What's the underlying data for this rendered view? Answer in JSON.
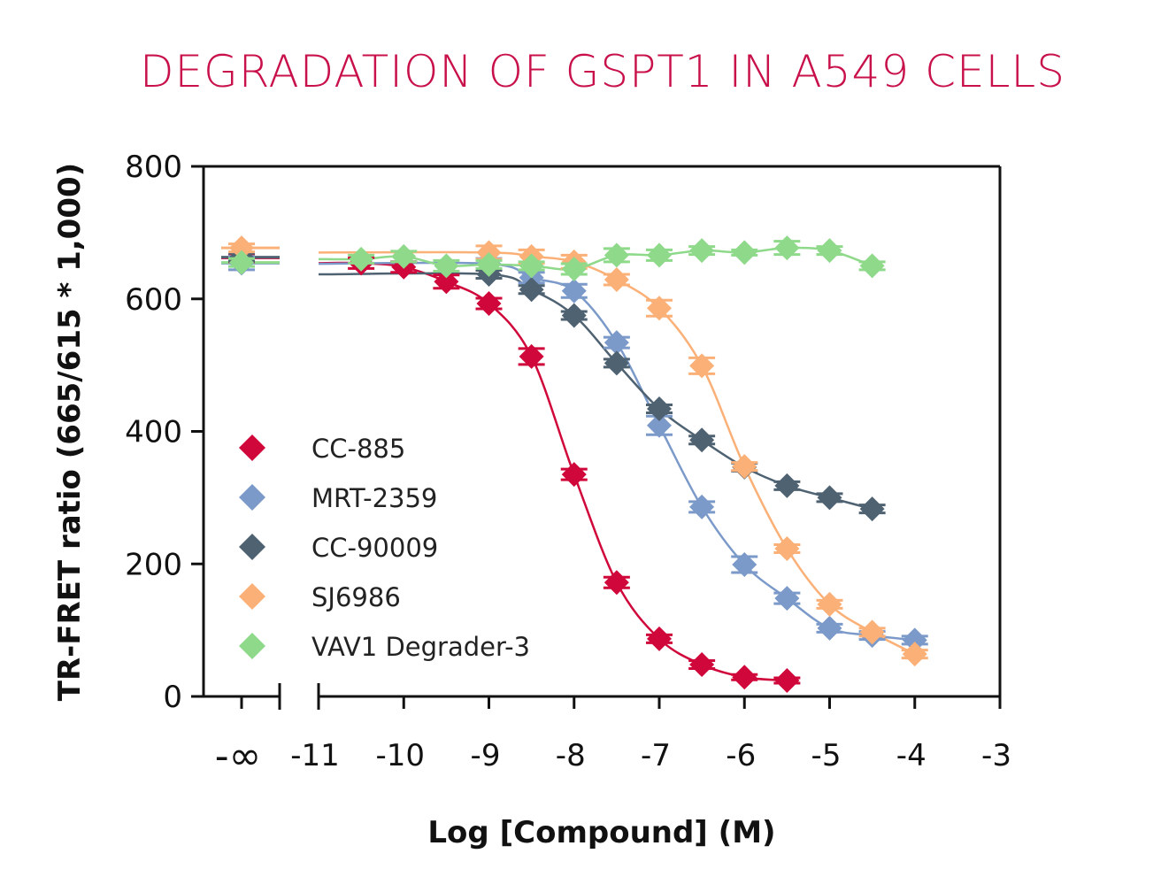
{
  "chart_data": {
    "type": "scatter",
    "title": "DEGRADATION OF GSPT1 IN A549 CELLS",
    "xlabel": "Log [Compound] (M)",
    "ylabel": "TR-FRET ratio (665/615 * 1,000)",
    "xlim": [
      -11,
      -3
    ],
    "ylim": [
      0,
      800
    ],
    "x_ticks": [
      "-∞",
      "-11",
      "-10",
      "-9",
      "-8",
      "-7",
      "-6",
      "-5",
      "-4",
      "-3"
    ],
    "y_ticks": [
      "0",
      "200",
      "400",
      "600",
      "800"
    ],
    "legend_position": "left",
    "grid": false,
    "series": [
      {
        "name": "CC-885",
        "color": "#D0073A",
        "x": [
          "-inf",
          -10.5,
          -10,
          -9.5,
          -9,
          -8.5,
          -8,
          -7.5,
          -7,
          -6.5,
          -6,
          -5.5
        ],
        "y": [
          662,
          654,
          648,
          626,
          593,
          513,
          335,
          172,
          87,
          48,
          29,
          24
        ],
        "err": [
          6,
          8,
          8,
          10,
          8,
          12,
          8,
          8,
          6,
          6,
          4,
          4
        ]
      },
      {
        "name": "MRT-2359",
        "color": "#7B9AC9",
        "x": [
          "-inf",
          -9,
          -8.5,
          -8,
          -7.5,
          -7,
          -6.5,
          -6,
          -5.5,
          -5,
          -4.5,
          -4
        ],
        "y": [
          654,
          653,
          632,
          612,
          534,
          409,
          286,
          199,
          148,
          103,
          92,
          85
        ],
        "err": [
          10,
          8,
          8,
          10,
          8,
          14,
          8,
          12,
          8,
          6,
          6,
          6
        ]
      },
      {
        "name": "CC-90009",
        "color": "#4F6272",
        "x": [
          "-inf",
          -9,
          -8.5,
          -8,
          -7.5,
          -7,
          -6.5,
          -6,
          -5.5,
          -5,
          -4.5
        ],
        "y": [
          663,
          637,
          614,
          575,
          503,
          434,
          387,
          346,
          318,
          300,
          283
        ],
        "err": [
          6,
          6,
          6,
          6,
          6,
          6,
          6,
          6,
          6,
          6,
          6
        ]
      },
      {
        "name": "SJ6986",
        "color": "#FBB077",
        "x": [
          "-inf",
          -9,
          -8.5,
          -8,
          -7.5,
          -7,
          -6.5,
          -6,
          -5.5,
          -5,
          -4.5,
          -4
        ],
        "y": [
          677,
          670,
          664,
          656,
          629,
          586,
          499,
          347,
          223,
          139,
          97,
          64
        ],
        "err": [
          6,
          10,
          10,
          10,
          8,
          12,
          12,
          6,
          6,
          6,
          6,
          6
        ]
      },
      {
        "name": "VAV1 Degrader-3",
        "color": "#8ED98A",
        "x": [
          "-inf",
          -10.5,
          -10,
          -9.5,
          -9,
          -8.5,
          -8,
          -7.5,
          -7,
          -6.5,
          -6,
          -5.5,
          -5,
          -4.5
        ],
        "y": [
          655,
          660,
          664,
          650,
          652,
          650,
          645,
          666,
          666,
          673,
          670,
          677,
          673,
          650
        ],
        "err": [
          6,
          6,
          8,
          8,
          6,
          6,
          8,
          10,
          8,
          6,
          4,
          10,
          6,
          6
        ]
      }
    ]
  }
}
